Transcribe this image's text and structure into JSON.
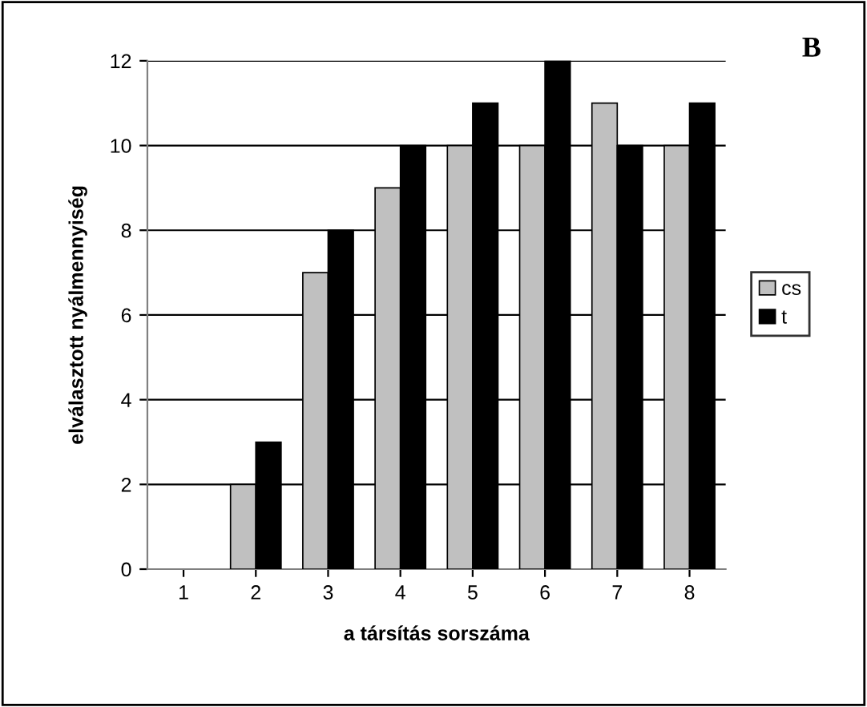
{
  "chart_data": {
    "type": "bar",
    "xlabel": "a társítás sorszáma",
    "ylabel": "elválasztott nyálmennyiség",
    "annotations": [
      "B"
    ],
    "categories": [
      "1",
      "2",
      "3",
      "4",
      "5",
      "6",
      "7",
      "8"
    ],
    "series": [
      {
        "name": "cs",
        "color": "#c0c0c0",
        "values": [
          null,
          2,
          7,
          9,
          10,
          10,
          11,
          10
        ]
      },
      {
        "name": "t",
        "color": "#000000",
        "values": [
          null,
          3,
          8,
          10,
          11,
          12,
          10,
          11
        ]
      }
    ],
    "ylim": [
      0,
      12
    ],
    "yticks": [
      0,
      2,
      4,
      6,
      8,
      10,
      12
    ],
    "grid": "y",
    "legend": "right"
  }
}
